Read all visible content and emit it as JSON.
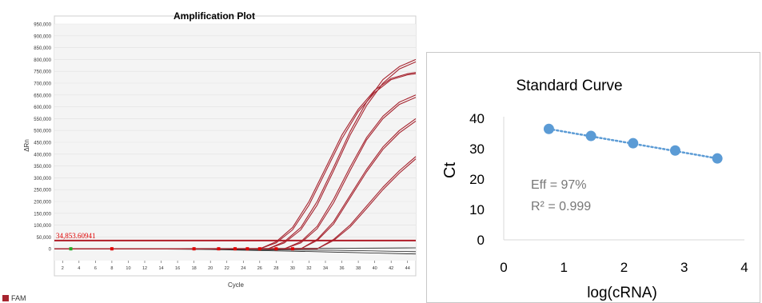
{
  "chart_data": [
    {
      "type": "line",
      "title": "Amplification Plot",
      "xlabel": "Cycle",
      "ylabel": "ΔRn",
      "xlim": [
        1,
        45
      ],
      "ylim": [
        -50000,
        950000
      ],
      "x_ticks": [
        "2",
        "4",
        "6",
        "8",
        "10",
        "12",
        "14",
        "16",
        "18",
        "20",
        "22",
        "24",
        "26",
        "28",
        "30",
        "32",
        "34",
        "36",
        "38",
        "40",
        "42",
        "44"
      ],
      "y_ticks": [
        "0",
        "50,000",
        "100,000",
        "150,000",
        "200,000",
        "250,000",
        "300,000",
        "350,000",
        "400,000",
        "450,000",
        "500,000",
        "550,000",
        "600,000",
        "650,000",
        "700,000",
        "750,000",
        "800,000",
        "850,000",
        "900,000",
        "950,000"
      ],
      "threshold": {
        "value": 34853.60941,
        "label": "34,853.60941"
      },
      "legend": [
        {
          "name": "FAM"
        }
      ],
      "curve_color": "#a6242f",
      "background_color": "#f4f4f4",
      "series": [
        {
          "x": [
            1,
            26,
            28,
            30,
            32,
            34,
            36,
            38,
            40,
            42,
            44,
            45
          ],
          "y": [
            0,
            0,
            30000,
            90000,
            200000,
            340000,
            480000,
            590000,
            670000,
            720000,
            740000,
            745000
          ]
        },
        {
          "x": [
            1,
            26,
            28,
            30,
            32,
            34,
            36,
            38,
            40,
            42,
            44,
            45
          ],
          "y": [
            0,
            0,
            25000,
            80000,
            185000,
            325000,
            465000,
            580000,
            660000,
            715000,
            735000,
            740000
          ]
        },
        {
          "x": [
            1,
            27,
            29,
            31,
            33,
            35,
            37,
            39,
            41,
            43,
            45
          ],
          "y": [
            0,
            0,
            30000,
            90000,
            200000,
            345000,
            495000,
            620000,
            715000,
            770000,
            800000
          ]
        },
        {
          "x": [
            1,
            27,
            29,
            31,
            33,
            35,
            37,
            39,
            41,
            43,
            45
          ],
          "y": [
            0,
            0,
            25000,
            80000,
            185000,
            330000,
            480000,
            605000,
            700000,
            760000,
            790000
          ]
        },
        {
          "x": [
            1,
            29,
            31,
            33,
            35,
            37,
            39,
            41,
            43,
            45
          ],
          "y": [
            0,
            0,
            30000,
            95000,
            210000,
            345000,
            470000,
            560000,
            620000,
            650000
          ]
        },
        {
          "x": [
            1,
            29,
            31,
            33,
            35,
            37,
            39,
            41,
            43,
            45
          ],
          "y": [
            0,
            0,
            25000,
            85000,
            195000,
            330000,
            460000,
            550000,
            610000,
            640000
          ]
        },
        {
          "x": [
            1,
            31,
            33,
            35,
            37,
            39,
            41,
            43,
            45
          ],
          "y": [
            0,
            0,
            40000,
            115000,
            225000,
            335000,
            430000,
            500000,
            550000
          ]
        },
        {
          "x": [
            1,
            31,
            33,
            35,
            37,
            39,
            41,
            43,
            45
          ],
          "y": [
            0,
            0,
            35000,
            105000,
            215000,
            325000,
            420000,
            490000,
            540000
          ]
        },
        {
          "x": [
            1,
            33,
            35,
            37,
            39,
            41,
            43,
            45
          ],
          "y": [
            0,
            0,
            40000,
            100000,
            180000,
            260000,
            330000,
            390000
          ]
        },
        {
          "x": [
            1,
            33,
            35,
            37,
            39,
            41,
            43,
            45
          ],
          "y": [
            0,
            0,
            35000,
            92000,
            170000,
            250000,
            320000,
            380000
          ]
        }
      ],
      "baseline_series": [
        {
          "x": [
            1,
            10,
            20,
            30,
            35,
            40,
            45
          ],
          "y": [
            0,
            0,
            -2000,
            -5000,
            -6000,
            -9000,
            -12000
          ]
        },
        {
          "x": [
            1,
            10,
            20,
            30,
            35,
            40,
            45
          ],
          "y": [
            0,
            0,
            -3000,
            -10000,
            -14000,
            -18000,
            -22000
          ]
        },
        {
          "x": [
            1,
            10,
            20,
            30,
            35,
            40,
            45
          ],
          "y": [
            0,
            0,
            1500,
            2000,
            2500,
            3000,
            4000
          ]
        }
      ],
      "markers": [
        {
          "x": 3,
          "color": "#22aa22"
        },
        {
          "x": 8,
          "color": "#e00000"
        },
        {
          "x": 18,
          "color": "#e00000"
        },
        {
          "x": 21,
          "color": "#e00000"
        },
        {
          "x": 23,
          "color": "#e00000"
        },
        {
          "x": 24.5,
          "color": "#e00000"
        },
        {
          "x": 26,
          "color": "#e00000"
        },
        {
          "x": 28,
          "color": "#e00000"
        },
        {
          "x": 30,
          "color": "#e00000"
        }
      ]
    },
    {
      "type": "scatter",
      "title": "Standard Curve",
      "xlabel": "log(cRNA)",
      "ylabel": "Ct",
      "xlim": [
        0,
        4
      ],
      "ylim": [
        0,
        40
      ],
      "x_ticks": [
        "0",
        "1",
        "2",
        "3",
        "4"
      ],
      "y_ticks": [
        "0",
        "10",
        "20",
        "30",
        "40"
      ],
      "x": [
        0.75,
        1.45,
        2.15,
        2.85,
        3.55
      ],
      "y": [
        36.5,
        34.2,
        31.8,
        29.4,
        26.8
      ],
      "trendline": "dotted",
      "point_color": "#5b9bd5",
      "annotations": [
        "Eff = 97%",
        "R² = 0.999"
      ],
      "annotation_color": "#777777"
    }
  ]
}
